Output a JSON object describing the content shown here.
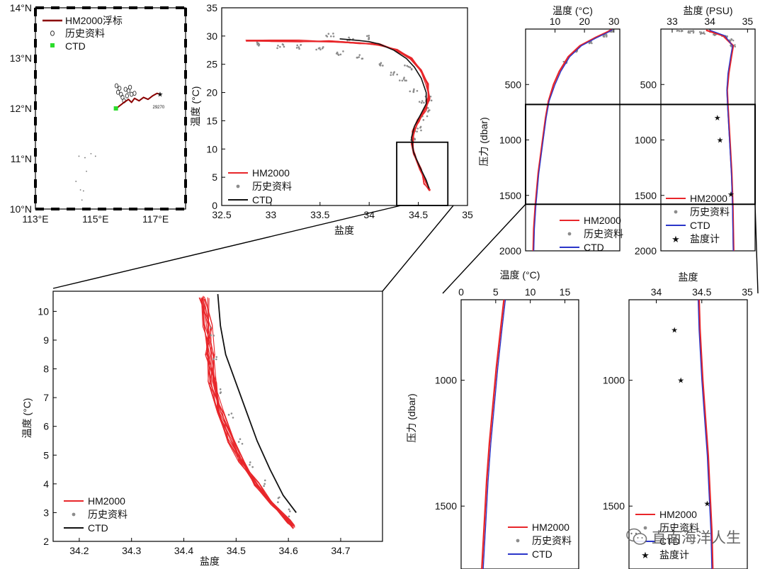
{
  "colors": {
    "hm2000": "#e8262a",
    "hm2000_track": "#8b0000",
    "history": "#8c8c8c",
    "ctd_line": "#111111",
    "ctd_profile": "#2a35c9",
    "ctd_marker": "#2bdc2b",
    "salinometer": "#111111"
  },
  "watermark": {
    "text": "直面海洋人生",
    "icon": "wechat-icon"
  },
  "chart_data": [
    {
      "id": "map",
      "type": "scatter",
      "xlim": [
        113,
        118
      ],
      "ylim": [
        10,
        14
      ],
      "xticks": [
        113,
        115,
        117
      ],
      "yticks": [
        10,
        11,
        12,
        13,
        14
      ],
      "xtick_labels": [
        "113°E",
        "115°E",
        "117°E"
      ],
      "ytick_labels": [
        "10°N",
        "11°N",
        "12°N",
        "13°N",
        "14°N"
      ],
      "legend": {
        "placement": "top-left",
        "items": [
          "HM2000浮标",
          "历史资料",
          "CTD"
        ]
      },
      "annotation": "29270",
      "track": {
        "name": "HM2000浮标",
        "x": [
          115.7,
          115.8,
          115.95,
          116.1,
          116.2,
          116.3,
          116.45,
          116.6,
          116.75,
          116.9,
          117.05,
          117.15
        ],
        "y": [
          12.0,
          12.05,
          12.12,
          12.18,
          12.12,
          12.2,
          12.15,
          12.22,
          12.18,
          12.25,
          12.3,
          12.28
        ]
      },
      "history_circles": {
        "name": "历史资料",
        "x": [
          115.7,
          115.8,
          115.75,
          115.85,
          116.0,
          116.1,
          115.9,
          116.05,
          116.2,
          116.15,
          115.95,
          116.3
        ],
        "y": [
          12.45,
          12.4,
          12.32,
          12.28,
          12.38,
          12.35,
          12.22,
          12.25,
          12.28,
          12.42,
          12.15,
          12.3
        ]
      },
      "history_dots": {
        "x": [
          114.45,
          114.65,
          114.85,
          114.5,
          114.6,
          114.55,
          115.0,
          114.7,
          114.35
        ],
        "y": [
          11.05,
          11.02,
          11.1,
          10.38,
          10.36,
          10.18,
          11.05,
          10.75,
          10.55
        ]
      },
      "ctd": {
        "name": "CTD",
        "x": [
          115.68
        ],
        "y": [
          12.0
        ]
      },
      "float_end": {
        "x": [
          117.15
        ],
        "y": [
          12.3
        ]
      }
    },
    {
      "id": "ts-full",
      "type": "scatter",
      "xlabel": "盐度",
      "ylabel": "温度 (°C)",
      "xlim": [
        32.5,
        35
      ],
      "ylim": [
        0,
        35
      ],
      "xticks": [
        32.5,
        33,
        33.5,
        34,
        34.5,
        35
      ],
      "xtick_labels": [
        "32.5",
        "33",
        "33.5",
        "34",
        "34.5",
        "35"
      ],
      "yticks": [
        0,
        5,
        10,
        15,
        20,
        25,
        30,
        35
      ],
      "legend": {
        "placement": "bottom-left",
        "items": [
          "HM2000",
          "历史资料",
          "CTD"
        ]
      },
      "zoom_box": {
        "x": [
          34.28,
          34.8
        ],
        "y": [
          0,
          11.2
        ]
      },
      "series": [
        {
          "name": "CTD",
          "x": [
            33.7,
            33.9,
            34.0,
            34.1,
            34.25,
            34.38,
            34.46,
            34.53,
            34.58,
            34.58,
            34.52,
            34.46,
            34.43,
            34.45,
            34.51,
            34.58,
            34.61
          ],
          "y": [
            29.5,
            29.2,
            29.0,
            28.6,
            27.5,
            26.0,
            24.5,
            22.5,
            20.0,
            18.0,
            16.0,
            14.0,
            12.0,
            9.5,
            7.0,
            4.5,
            3.0
          ]
        },
        {
          "name": "HM2000",
          "x": [
            32.75,
            33.0,
            33.3,
            33.6,
            33.9,
            34.1,
            34.28,
            34.42,
            34.52,
            34.59,
            34.61,
            34.57,
            34.5,
            34.45,
            34.44,
            34.46,
            34.52,
            34.57,
            34.61
          ],
          "y": [
            29.2,
            29.2,
            29.1,
            29.0,
            28.8,
            28.5,
            27.5,
            26.0,
            24.0,
            21.5,
            19.0,
            17.0,
            15.0,
            13.0,
            11.0,
            9.0,
            6.5,
            4.0,
            2.6
          ]
        },
        {
          "name": "历史资料",
          "x": [
            32.9,
            33.1,
            33.3,
            33.5,
            33.7,
            33.9,
            34.1,
            34.25,
            34.35,
            34.45,
            34.55,
            34.58,
            34.6,
            34.55,
            34.5,
            34.45,
            33.8,
            34.0,
            33.6,
            34.4
          ],
          "y": [
            28.5,
            28.3,
            28.0,
            27.6,
            27.0,
            26.2,
            25.0,
            23.5,
            22.2,
            20.5,
            18.5,
            17.0,
            19.0,
            15.5,
            13.5,
            11.5,
            29.5,
            29.8,
            30.2,
            24.5
          ]
        }
      ]
    },
    {
      "id": "ts-zoom",
      "type": "scatter",
      "xlabel": "盐度",
      "ylabel": "温度 (°C)",
      "xlim": [
        34.15,
        34.78
      ],
      "ylim": [
        2,
        10.7
      ],
      "xticks": [
        34.2,
        34.3,
        34.4,
        34.5,
        34.6,
        34.7
      ],
      "xtick_labels": [
        "34.2",
        "34.3",
        "34.4",
        "34.5",
        "34.6",
        "34.7"
      ],
      "yticks": [
        2,
        3,
        4,
        5,
        6,
        7,
        8,
        9,
        10
      ],
      "legend": {
        "placement": "bottom-left",
        "items": [
          "HM2000",
          "历史资料",
          "CTD"
        ]
      },
      "series": [
        {
          "name": "CTD",
          "x": [
            34.465,
            34.47,
            34.48,
            34.5,
            34.52,
            34.54,
            34.565,
            34.59,
            34.615
          ],
          "y": [
            10.6,
            9.5,
            8.5,
            7.5,
            6.5,
            5.5,
            4.5,
            3.6,
            3.0
          ]
        },
        {
          "name": "HM2000",
          "x": [
            34.44,
            34.445,
            34.45,
            34.455,
            34.47,
            34.49,
            34.51,
            34.54,
            34.57,
            34.6,
            34.61
          ],
          "y": [
            10.5,
            9.5,
            8.5,
            7.5,
            6.5,
            5.5,
            4.8,
            4.0,
            3.3,
            2.7,
            2.5
          ]
        },
        {
          "name": "历史资料",
          "x": [
            34.455,
            34.46,
            34.47,
            34.49,
            34.51,
            34.53,
            34.555,
            34.58,
            34.6
          ],
          "y": [
            9.3,
            8.3,
            7.3,
            6.3,
            5.5,
            4.7,
            4.0,
            3.4,
            3.0
          ]
        }
      ]
    },
    {
      "id": "temp-profile",
      "type": "line",
      "title": "温度 (°C)",
      "ylabel": "压力 (dbar)",
      "xlim": [
        0,
        32
      ],
      "ylim": [
        2000,
        0
      ],
      "xticks": [
        10,
        20,
        30
      ],
      "yticks": [
        500,
        1000,
        1500,
        2000
      ],
      "legend": {
        "placement": "bottom-right",
        "items": [
          "HM2000",
          "历史资料",
          "CTD"
        ]
      },
      "series": [
        {
          "name": "CTD",
          "x": [
            29.5,
            28,
            24,
            19,
            15,
            12,
            10,
            8,
            7,
            6,
            4.5,
            3.5,
            3.0,
            2.8
          ],
          "y": [
            5,
            30,
            80,
            150,
            250,
            380,
            500,
            650,
            800,
            1000,
            1300,
            1600,
            1800,
            2000
          ]
        },
        {
          "name": "HM2000",
          "x": [
            29.3,
            27.5,
            23.5,
            18.5,
            14.5,
            11.5,
            9.5,
            7.8,
            6.8,
            5.8,
            4.3,
            3.3,
            2.8,
            2.6
          ],
          "y": [
            5,
            30,
            80,
            150,
            250,
            380,
            500,
            650,
            800,
            1000,
            1300,
            1600,
            1800,
            2000
          ]
        },
        {
          "name": "历史资料",
          "x": [
            29,
            27,
            22,
            17,
            13.5
          ],
          "y": [
            20,
            60,
            120,
            200,
            300
          ]
        }
      ]
    },
    {
      "id": "sal-profile",
      "type": "line",
      "title": "盐度 (PSU)",
      "xlim": [
        32.7,
        35.2
      ],
      "ylim": [
        2000,
        0
      ],
      "xticks": [
        33,
        34,
        35
      ],
      "yticks": [
        500,
        1000,
        1500,
        2000
      ],
      "legend": {
        "placement": "bottom-left",
        "items": [
          "HM2000",
          "历史资料",
          "CTD",
          "盐度计"
        ]
      },
      "series": [
        {
          "name": "CTD",
          "x": [
            34.0,
            34.4,
            34.6,
            34.55,
            34.48,
            34.45,
            34.47,
            34.52,
            34.57,
            34.6,
            34.62
          ],
          "y": [
            10,
            60,
            150,
            250,
            400,
            550,
            700,
            1000,
            1300,
            1600,
            2000
          ]
        },
        {
          "name": "HM2000",
          "x": [
            33.9,
            34.35,
            34.62,
            34.57,
            34.5,
            34.46,
            34.48,
            34.53,
            34.58,
            34.61,
            34.63
          ],
          "y": [
            10,
            60,
            150,
            250,
            400,
            550,
            700,
            1000,
            1300,
            1600,
            2000
          ]
        },
        {
          "name": "历史资料",
          "x": [
            33.2,
            33.5,
            33.8,
            34.1,
            34.4,
            34.55,
            34.6
          ],
          "y": [
            15,
            25,
            35,
            50,
            70,
            100,
            150
          ]
        },
        {
          "name": "盐度计",
          "x": [
            34.2,
            34.27,
            34.56
          ],
          "y": [
            800,
            1000,
            1490
          ]
        }
      ]
    },
    {
      "id": "temp-profile-zoom",
      "type": "line",
      "title": "温度 (°C)",
      "ylabel": "压力 (dbar)",
      "xlim": [
        0,
        17
      ],
      "ylim": [
        1750,
        680
      ],
      "xticks": [
        0,
        5,
        10,
        15
      ],
      "yticks": [
        1000,
        1500
      ],
      "legend": {
        "placement": "bottom-right",
        "items": [
          "HM2000",
          "历史资料",
          "CTD"
        ]
      },
      "series": [
        {
          "name": "CTD",
          "x": [
            6.4,
            5.9,
            5.3,
            4.8,
            4.3,
            3.9,
            3.6,
            3.4,
            3.2
          ],
          "y": [
            680,
            800,
            950,
            1100,
            1250,
            1400,
            1550,
            1650,
            1750
          ]
        },
        {
          "name": "HM2000",
          "x": [
            6.2,
            5.7,
            5.1,
            4.6,
            4.1,
            3.7,
            3.4,
            3.2,
            3.0
          ],
          "y": [
            680,
            800,
            950,
            1100,
            1250,
            1400,
            1550,
            1650,
            1750
          ]
        },
        {
          "name": "历史资料",
          "x": [],
          "y": []
        }
      ]
    },
    {
      "id": "sal-profile-zoom",
      "type": "line",
      "title": "盐度",
      "xlim": [
        33.7,
        35.0
      ],
      "ylim": [
        1750,
        680
      ],
      "xticks": [
        34,
        34.5,
        35
      ],
      "xtick_labels": [
        "34",
        "34.5",
        "35"
      ],
      "yticks": [
        1000,
        1500
      ],
      "legend": {
        "placement": "bottom-left",
        "items": [
          "HM2000",
          "历史资料",
          "CTD",
          "盐度计"
        ]
      },
      "series": [
        {
          "name": "CTD",
          "x": [
            34.46,
            34.47,
            34.5,
            34.53,
            34.56,
            34.58,
            34.6,
            34.61
          ],
          "y": [
            680,
            800,
            1000,
            1150,
            1300,
            1450,
            1600,
            1750
          ]
        },
        {
          "name": "HM2000",
          "x": [
            34.47,
            34.48,
            34.51,
            34.54,
            34.57,
            34.59,
            34.61,
            34.62
          ],
          "y": [
            680,
            800,
            1000,
            1150,
            1300,
            1450,
            1600,
            1750
          ]
        },
        {
          "name": "历史资料",
          "x": [],
          "y": []
        },
        {
          "name": "盐度计",
          "x": [
            34.2,
            34.27,
            34.56
          ],
          "y": [
            800,
            1000,
            1490
          ]
        }
      ]
    }
  ]
}
